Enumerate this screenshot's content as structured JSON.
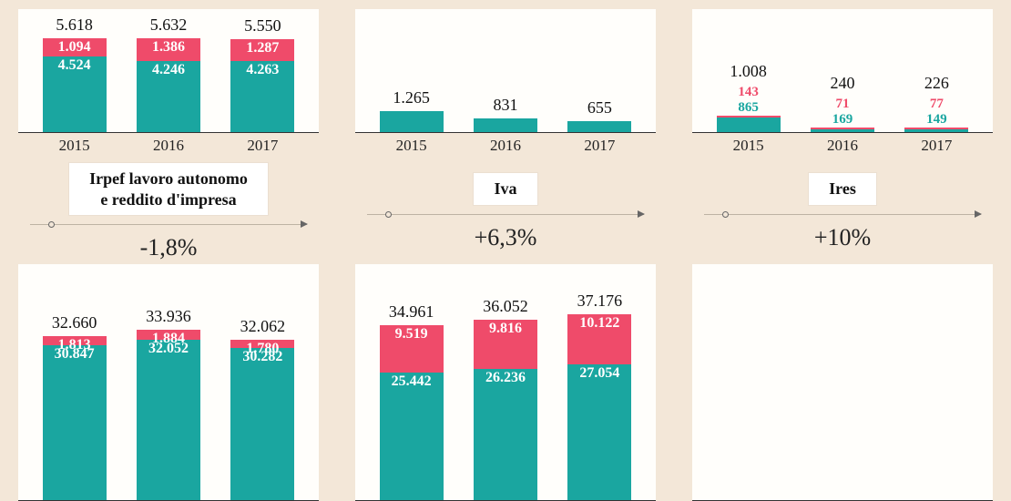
{
  "colors": {
    "teal": "#1aa6a0",
    "pink": "#ef4b6a",
    "page_bg": "#f3e7d8",
    "panel_bg": "#fffefb"
  },
  "years": [
    "2015",
    "2016",
    "2017"
  ],
  "row1": {
    "irpef_top": {
      "scale_max": 6000,
      "bars": [
        {
          "total": "5.618",
          "top_v": 1094,
          "top_l": "1.094",
          "bot_v": 4524,
          "bot_l": "4.524"
        },
        {
          "total": "5.632",
          "top_v": 1386,
          "top_l": "1.386",
          "bot_v": 4246,
          "bot_l": "4.246"
        },
        {
          "total": "5.550",
          "top_v": 1287,
          "top_l": "1.287",
          "bot_v": 4263,
          "bot_l": "4.263"
        }
      ]
    },
    "iva_top": {
      "scale_max": 6000,
      "bars": [
        {
          "total": "1.265",
          "v": 1265
        },
        {
          "total": "831",
          "v": 831
        },
        {
          "total": "655",
          "v": 655
        }
      ]
    },
    "ires_top": {
      "scale_max": 6000,
      "bars": [
        {
          "total": "1.008",
          "top_v": 143,
          "top_l": "143",
          "bot_v": 865,
          "bot_l": "865"
        },
        {
          "total": "240",
          "top_v": 71,
          "top_l": "71",
          "bot_v": 169,
          "bot_l": "169"
        },
        {
          "total": "226",
          "top_v": 77,
          "top_l": "77",
          "bot_v": 149,
          "bot_l": "149"
        }
      ]
    }
  },
  "titles": {
    "irpef": "Irpef lavoro autonomo\ne reddito d'impresa",
    "iva": "Iva",
    "ires": "Ires"
  },
  "pct": {
    "irpef": "-1,8%",
    "iva": "+6,3%",
    "ires": "+10%"
  },
  "row2": {
    "irpef_bot": {
      "scale_max": 40000,
      "bars": [
        {
          "total": "32.660",
          "top_v": 1813,
          "top_l": "1.813",
          "bot_v": 30847,
          "bot_l": "30.847"
        },
        {
          "total": "33.936",
          "top_v": 1884,
          "top_l": "1.884",
          "bot_v": 32052,
          "bot_l": "32.052"
        },
        {
          "total": "32.062",
          "top_v": 1780,
          "top_l": "1.780",
          "bot_v": 30282,
          "bot_l": "30.282"
        }
      ]
    },
    "iva_bot": {
      "scale_max": 40000,
      "bars": [
        {
          "total": "34.961",
          "top_v": 9519,
          "top_l": "9.519",
          "bot_v": 25442,
          "bot_l": "25.442"
        },
        {
          "total": "36.052",
          "top_v": 9816,
          "top_l": "9.816",
          "bot_v": 26236,
          "bot_l": "26.236"
        },
        {
          "total": "37.176",
          "top_v": 10122,
          "top_l": "10.122",
          "bot_v": 27054,
          "bot_l": "27.054"
        }
      ]
    },
    "ires_bot": {
      "scale_max": 40000
    }
  }
}
